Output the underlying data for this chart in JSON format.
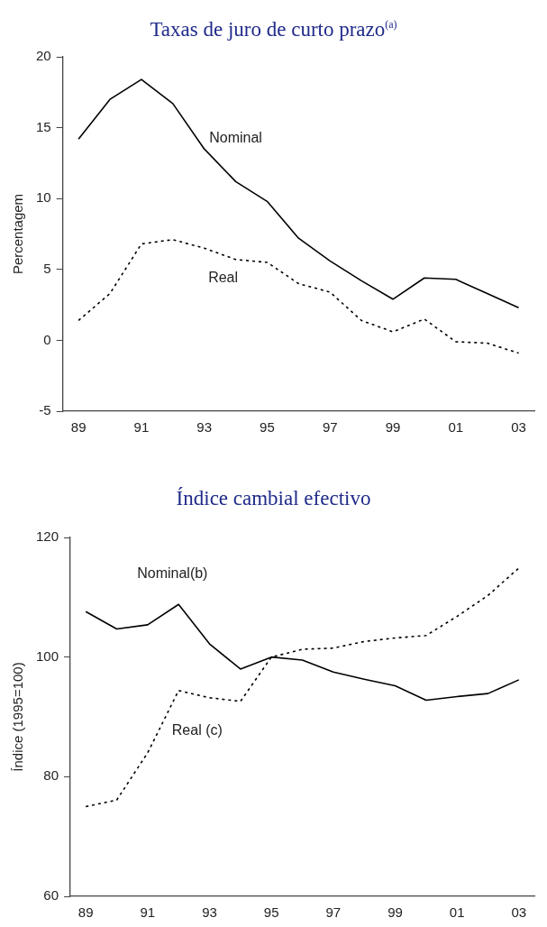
{
  "chart_data": [
    {
      "type": "line",
      "title": "Taxas de juro de curto prazo$^{(a)}$",
      "ylabel": "Percentagem",
      "categories": [
        "89",
        null,
        "91",
        null,
        "93",
        null,
        "95",
        null,
        "97",
        null,
        "99",
        null,
        "01",
        null,
        "03"
      ],
      "ylim": [
        -5,
        20
      ],
      "yticks": [
        -5,
        0,
        5,
        10,
        15,
        20
      ],
      "grid": false,
      "legend": false,
      "marker": "none",
      "series": [
        {
          "name": "Nominal",
          "color": "#000000",
          "line_style": "solid",
          "values": [
            14.2,
            17.0,
            18.4,
            16.7,
            13.5,
            11.2,
            9.8,
            7.2,
            5.6,
            4.2,
            2.9,
            4.4,
            4.3,
            3.3,
            2.3
          ]
        },
        {
          "name": "Real",
          "color": "#000000",
          "line_style": "dotted",
          "values": [
            1.4,
            3.3,
            6.8,
            7.1,
            6.5,
            5.7,
            5.5,
            4.0,
            3.4,
            1.4,
            0.6,
            1.5,
            -0.1,
            -0.2,
            -0.9
          ]
        }
      ]
    },
    {
      "type": "line",
      "title": "Índice cambial efectivo",
      "ylabel": "Índice (1995=100)",
      "categories": [
        "89",
        null,
        "91",
        null,
        "93",
        null,
        "95",
        null,
        "97",
        null,
        "99",
        null,
        "01",
        null,
        "03"
      ],
      "ylim": [
        60,
        120
      ],
      "yticks": [
        60,
        80,
        100,
        120
      ],
      "grid": false,
      "legend": false,
      "marker": "none",
      "series": [
        {
          "name": "Nominal(b)",
          "color": "#000000",
          "line_style": "solid",
          "values": [
            107.6,
            104.7,
            105.4,
            108.8,
            102.2,
            98.0,
            100,
            99.5,
            97.5,
            96.3,
            95.2,
            92.8,
            93.4,
            93.9,
            96.2
          ]
        },
        {
          "name": "Real (c)",
          "color": "#000000",
          "line_style": "dotted",
          "values": [
            75.0,
            76.1,
            84,
            94.4,
            93.2,
            92.6,
            100,
            101.3,
            101.5,
            102.6,
            103.2,
            103.6,
            106.8,
            110.3,
            114.9
          ]
        }
      ]
    }
  ]
}
